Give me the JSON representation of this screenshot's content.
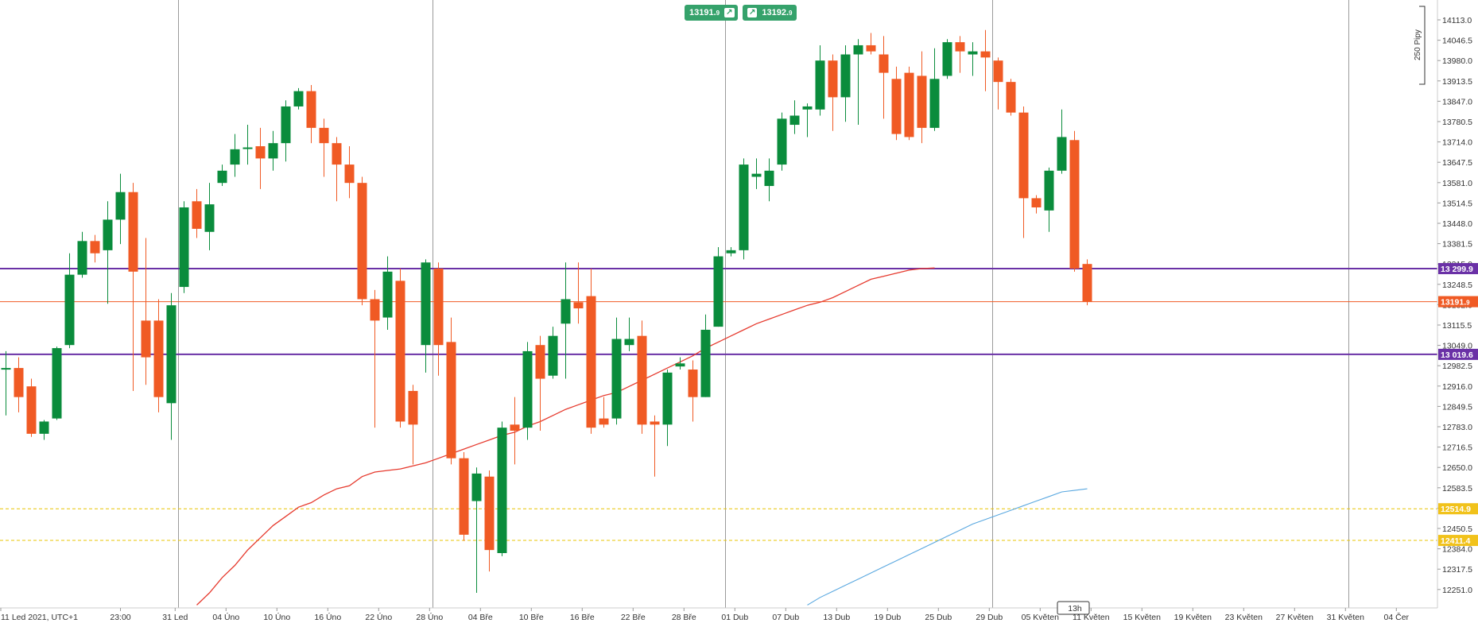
{
  "header": {
    "sell_price": "13191.",
    "sell_price_sup": "9",
    "buy_price": "13192.",
    "buy_price_sup": "9",
    "arrow_icon": "arrow-up-right-icon"
  },
  "scale_label": "250 Pipy",
  "timezone_label": "11 Led 2021, UTC+1",
  "time_marker": "13h",
  "chart_data": {
    "type": "candlestick",
    "instrument_note": "",
    "ylim": [
      12200,
      14150
    ],
    "y_ticks": [
      14113.0,
      14046.5,
      13980.0,
      13913.5,
      13847.0,
      13780.5,
      13714.0,
      13647.5,
      13581.0,
      13514.5,
      13448.0,
      13381.5,
      13315.0,
      13248.5,
      13182.0,
      13115.5,
      13049.0,
      12982.5,
      12916.0,
      12849.5,
      12783.0,
      12716.5,
      12650.0,
      12583.5,
      12517.0,
      12450.5,
      12384.0,
      12317.5,
      12251.0
    ],
    "x_labels": [
      "11 Led 2021, UTC+1",
      "23:00",
      "31 Led",
      "04 Úno",
      "10 Úno",
      "16 Úno",
      "22 Úno",
      "28 Úno",
      "04 Bře",
      "10 Bře",
      "16 Bře",
      "22 Bře",
      "28 Bře",
      "01 Dub",
      "07 Dub",
      "13 Dub",
      "19 Dub",
      "25 Dub",
      "29 Dub",
      "05 Květen",
      "11 Květen",
      "15 Květen",
      "19 Květen",
      "23 Květen",
      "27 Květen",
      "31 Květen",
      "04 Čer"
    ],
    "x_label_index": [
      0,
      9,
      13.3,
      17.3,
      21.3,
      25.3,
      29.3,
      33.3,
      37.3,
      41.3,
      45.3,
      49.3,
      53.3,
      57.3,
      61.3,
      65.3,
      69.3,
      73.3,
      77.3,
      81.3,
      85.3,
      89.3,
      93.3,
      97.3,
      101.3,
      105.3,
      109.3
    ],
    "separator_index": [
      14,
      34,
      57,
      78,
      106
    ],
    "candles": [
      [
        12970,
        12975,
        12820,
        13030
      ],
      [
        12975,
        12880,
        12830,
        13010
      ],
      [
        12915,
        12760,
        12750,
        12940
      ],
      [
        12760,
        12800,
        12740,
        12805
      ],
      [
        12810,
        13040,
        12805,
        13045
      ],
      [
        13050,
        13280,
        13040,
        13350
      ],
      [
        13280,
        13390,
        13270,
        13420
      ],
      [
        13390,
        13350,
        13320,
        13410
      ],
      [
        13360,
        13460,
        13185,
        13520
      ],
      [
        13460,
        13550,
        13380,
        13610
      ],
      [
        13550,
        13290,
        12900,
        13580
      ],
      [
        13130,
        13010,
        12920,
        13400
      ],
      [
        13130,
        12880,
        12830,
        13200
      ],
      [
        12860,
        13180,
        12740,
        13220
      ],
      [
        13240,
        13500,
        13220,
        13520
      ],
      [
        13520,
        13430,
        13400,
        13560
      ],
      [
        13420,
        13510,
        13360,
        13580
      ],
      [
        13580,
        13620,
        13570,
        13640
      ],
      [
        13640,
        13690,
        13600,
        13740
      ],
      [
        13695,
        13696,
        13640,
        13770
      ],
      [
        13700,
        13660,
        13560,
        13760
      ],
      [
        13660,
        13710,
        13620,
        13750
      ],
      [
        13710,
        13830,
        13650,
        13850
      ],
      [
        13830,
        13880,
        13820,
        13890
      ],
      [
        13880,
        13760,
        13710,
        13900
      ],
      [
        13760,
        13710,
        13600,
        13790
      ],
      [
        13710,
        13640,
        13520,
        13730
      ],
      [
        13640,
        13580,
        13530,
        13700
      ],
      [
        13580,
        13200,
        13180,
        13600
      ],
      [
        13200,
        13130,
        12780,
        13230
      ],
      [
        13140,
        13290,
        13100,
        13340
      ],
      [
        13260,
        12800,
        12780,
        13300
      ],
      [
        12900,
        12790,
        12660,
        12920
      ],
      [
        13050,
        13320,
        12960,
        13330
      ],
      [
        13300,
        13050,
        12950,
        13320
      ],
      [
        13060,
        12680,
        12660,
        13140
      ],
      [
        12680,
        12430,
        12410,
        12700
      ],
      [
        12540,
        12630,
        12240,
        12650
      ],
      [
        12620,
        12380,
        12310,
        12640
      ],
      [
        12370,
        12780,
        12360,
        12800
      ],
      [
        12790,
        12770,
        12660,
        12880
      ],
      [
        12780,
        13030,
        12740,
        13060
      ],
      [
        13050,
        12940,
        12770,
        13080
      ],
      [
        12950,
        13080,
        12940,
        13110
      ],
      [
        13120,
        13200,
        12940,
        13320
      ],
      [
        13190,
        13170,
        13120,
        13320
      ],
      [
        13210,
        12780,
        12760,
        13300
      ],
      [
        12810,
        12790,
        12780,
        12880
      ],
      [
        12810,
        13070,
        12790,
        13140
      ],
      [
        13050,
        13070,
        13030,
        13140
      ],
      [
        13080,
        12790,
        12760,
        13130
      ],
      [
        12800,
        12790,
        12620,
        12820
      ],
      [
        12790,
        12960,
        12720,
        12970
      ],
      [
        12980,
        12990,
        12970,
        13010
      ],
      [
        12970,
        12880,
        12800,
        13000
      ],
      [
        12880,
        13100,
        12880,
        13150
      ],
      [
        13110,
        13340,
        13110,
        13370
      ],
      [
        13350,
        13360,
        13340,
        13370
      ],
      [
        13360,
        13640,
        13330,
        13660
      ],
      [
        13600,
        13610,
        13560,
        13660
      ],
      [
        13570,
        13620,
        13520,
        13660
      ],
      [
        13640,
        13790,
        13620,
        13810
      ],
      [
        13770,
        13800,
        13740,
        13850
      ],
      [
        13820,
        13830,
        13730,
        13840
      ],
      [
        13820,
        13980,
        13800,
        14030
      ],
      [
        13980,
        13860,
        13750,
        14000
      ],
      [
        13860,
        14000,
        13780,
        14030
      ],
      [
        14000,
        14030,
        13770,
        14050
      ],
      [
        14030,
        14010,
        14000,
        14070
      ],
      [
        14000,
        13940,
        13790,
        14060
      ],
      [
        13920,
        13740,
        13720,
        13960
      ],
      [
        13940,
        13730,
        13720,
        13960
      ],
      [
        13930,
        13760,
        13710,
        14010
      ],
      [
        13760,
        13920,
        13750,
        14020
      ],
      [
        13930,
        14040,
        13920,
        14050
      ],
      [
        14040,
        14010,
        13940,
        14060
      ],
      [
        14000,
        14010,
        13930,
        14040
      ],
      [
        14010,
        13990,
        13880,
        14080
      ],
      [
        13980,
        13910,
        13820,
        13990
      ],
      [
        13910,
        13810,
        13800,
        13920
      ],
      [
        13810,
        13530,
        13400,
        13830
      ],
      [
        13530,
        13500,
        13480,
        13540
      ],
      [
        13490,
        13620,
        13420,
        13630
      ],
      [
        13620,
        13730,
        13610,
        13820
      ],
      [
        13720,
        13300,
        13290,
        13750
      ],
      [
        13315,
        13192,
        13180,
        13330
      ]
    ],
    "moving_average_start": 15,
    "moving_average": [
      12200,
      12240,
      12290,
      12330,
      12380,
      12420,
      12460,
      12490,
      12520,
      12535,
      12560,
      12580,
      12590,
      12620,
      12635,
      12640,
      12645,
      12655,
      12665,
      12680,
      12695,
      12710,
      12725,
      12740,
      12755,
      12765,
      12785,
      12800,
      12820,
      12840,
      12855,
      12870,
      12885,
      12895,
      12915,
      12935,
      12955,
      12975,
      12995,
      13015,
      13040,
      13060,
      13080,
      13100,
      13120,
      13135,
      13150,
      13165,
      13180,
      13190,
      13205,
      13225,
      13245,
      13265,
      13275,
      13285,
      13295,
      13300,
      13302
    ],
    "lower_line_start": 63,
    "lower_line": [
      12200,
      12225,
      12245,
      12265,
      12285,
      12305,
      12325,
      12345,
      12365,
      12385,
      12405,
      12425,
      12445,
      12465,
      12480,
      12495,
      12510,
      12525,
      12540,
      12555,
      12570,
      12575,
      12580
    ],
    "h_levels": [
      {
        "value": 13299.9,
        "label": "13 299.9",
        "color": "#6a31a6",
        "style": "solid"
      },
      {
        "value": 13191.9,
        "label": "13191.",
        "label_sup": "9",
        "color": "#f05a24",
        "style": "solid"
      },
      {
        "value": 13019.6,
        "label": "13 019.6",
        "color": "#6a31a6",
        "style": "solid"
      },
      {
        "value": 12514.9,
        "label": "12514.9",
        "color": "#e8c400",
        "style": "dashed"
      },
      {
        "value": 12411.4,
        "label": "12411.4",
        "color": "#e8c400",
        "style": "dashed"
      }
    ],
    "colors": {
      "bull": "#0a8c3c",
      "bear": "#f05a24",
      "ma": "#e63a2e",
      "lower_line": "#5aa8e0",
      "separator": "#9a9a9a"
    }
  }
}
